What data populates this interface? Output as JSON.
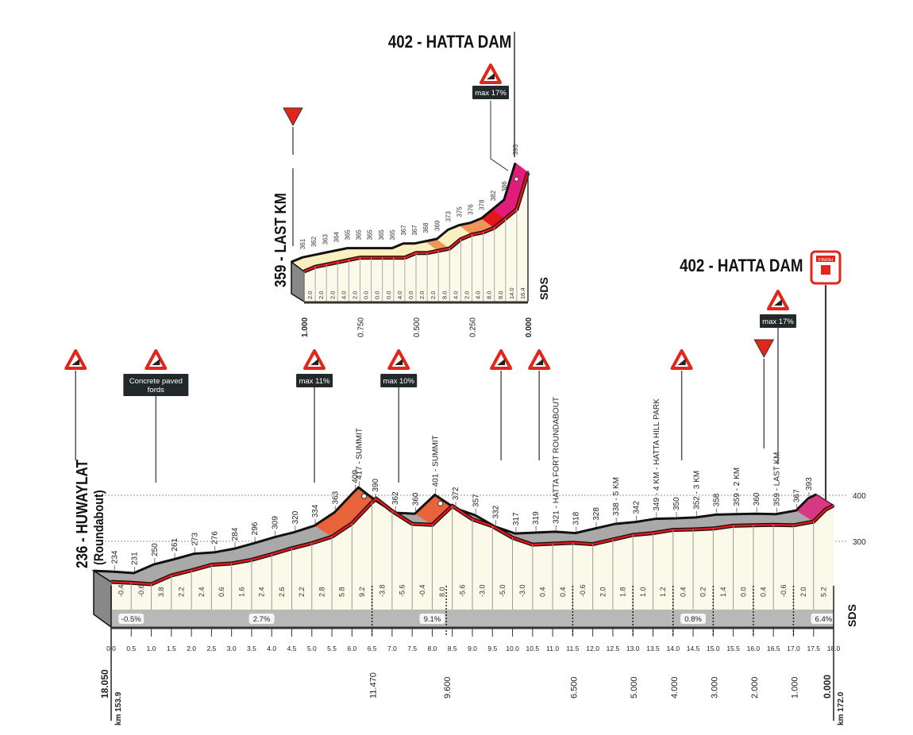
{
  "colors": {
    "profile_fill": "#fbf9ea",
    "band": "#b8b8b8",
    "road": "#e3161b",
    "climb": "#e8623a",
    "steep": "#e31c79",
    "sign_red": "#e3261b",
    "label_box": "#22292b",
    "last_km_light": "#fcefbf",
    "last_km_orange": "#f0955a"
  },
  "titles": {
    "inset_finish": "402 - HATTA DAM",
    "inset_start": "359 - LAST KM",
    "main_finish": "402 - HATTA DAM",
    "main_start": "236 - HUWAYLAT",
    "main_start_sub": "(Roundabout)",
    "finish_sign": "FINISH",
    "logo": "SDS"
  },
  "chart_data": [
    {
      "type": "area",
      "xlabel": "",
      "ylabel": "",
      "xlim": [
        0,
        18.0
      ],
      "ylim": [
        236,
        417
      ],
      "x_ticks": [
        "0.0",
        "0.5",
        "1.0",
        "1.5",
        "2.0",
        "2.5",
        "3.0",
        "3.5",
        "4.0",
        "4.5",
        "5.0",
        "5.5",
        "6.0",
        "6.5",
        "7.0",
        "7.5",
        "8.0",
        "8.5",
        "9.0",
        "9.5",
        "10.0",
        "10.5",
        "11.0",
        "11.5",
        "12.0",
        "12.5",
        "13.0",
        "13.5",
        "14.0",
        "14.5",
        "15.0",
        "15.5",
        "16.0",
        "16.5",
        "17.0",
        "17.5",
        "18.0"
      ],
      "y_ticks": [
        "400",
        "300"
      ],
      "profile": {
        "km": [
          0,
          0.5,
          1.0,
          1.5,
          2.0,
          2.5,
          3.0,
          3.5,
          4.0,
          4.5,
          5.0,
          5.5,
          6.0,
          6.5,
          6.6,
          7.0,
          7.5,
          8.0,
          8.5,
          9.0,
          9.5,
          10.0,
          10.5,
          11.0,
          11.5,
          12.0,
          12.5,
          13.0,
          13.5,
          14.0,
          14.5,
          15.0,
          15.5,
          16.0,
          16.5,
          17.0,
          17.5,
          17.8,
          18.0
        ],
        "elevation": [
          236,
          234,
          231,
          250,
          261,
          273,
          276,
          284,
          296,
          309,
          320,
          334,
          363,
          409,
          417,
          390,
          362,
          360,
          401,
          372,
          357,
          332,
          317,
          319,
          321,
          318,
          328,
          338,
          342,
          349,
          350,
          352,
          358,
          359,
          360,
          359,
          367,
          393,
          402
        ]
      },
      "point_labels": [
        {
          "km": 0.5,
          "text": "234"
        },
        {
          "km": 1.0,
          "text": "231"
        },
        {
          "km": 1.5,
          "text": "250"
        },
        {
          "km": 2.0,
          "text": "261"
        },
        {
          "km": 2.5,
          "text": "273"
        },
        {
          "km": 3.0,
          "text": "276"
        },
        {
          "km": 3.5,
          "text": "284"
        },
        {
          "km": 4.0,
          "text": "296"
        },
        {
          "km": 4.5,
          "text": "309"
        },
        {
          "km": 5.0,
          "text": "320"
        },
        {
          "km": 5.5,
          "text": "334"
        },
        {
          "km": 6.0,
          "text": "363"
        },
        {
          "km": 6.5,
          "text": "409"
        },
        {
          "km": 6.6,
          "text": "417 - SUMMIT"
        },
        {
          "km": 7.0,
          "text": "390"
        },
        {
          "km": 7.5,
          "text": "362"
        },
        {
          "km": 8.0,
          "text": "360"
        },
        {
          "km": 8.5,
          "text": "401 - SUMMIT"
        },
        {
          "km": 9.0,
          "text": "372"
        },
        {
          "km": 9.5,
          "text": "357"
        },
        {
          "km": 10.0,
          "text": "332"
        },
        {
          "km": 10.5,
          "text": "317"
        },
        {
          "km": 11.0,
          "text": "319"
        },
        {
          "km": 11.5,
          "text": "321 - HATTA FORT ROUNDABOUT"
        },
        {
          "km": 12.0,
          "text": "318"
        },
        {
          "km": 12.5,
          "text": "328"
        },
        {
          "km": 13.0,
          "text": "338 - 5 KM"
        },
        {
          "km": 13.5,
          "text": "342"
        },
        {
          "km": 14.0,
          "text": "349 - 4 KM - HATTA HILL PARK"
        },
        {
          "km": 14.5,
          "text": "350"
        },
        {
          "km": 15.0,
          "text": "352 - 3 KM"
        },
        {
          "km": 15.5,
          "text": "358"
        },
        {
          "km": 16.0,
          "text": "359 - 2 KM"
        },
        {
          "km": 16.5,
          "text": "360"
        },
        {
          "km": 17.0,
          "text": "359 - LAST KM"
        },
        {
          "km": 17.5,
          "text": "367"
        },
        {
          "km": 17.8,
          "text": "393"
        }
      ],
      "segment_gradients": [
        "-0.4",
        "-0.6",
        "3.8",
        "2.2",
        "2.4",
        "0.6",
        "1.6",
        "2.4",
        "2.6",
        "2.2",
        "2.8",
        "5.8",
        "9.2",
        "-3.8",
        "-5.6",
        "-0.4",
        "8.0",
        "-5.6",
        "-3.0",
        "-5.0",
        "-3.0",
        "0.4",
        "0.4",
        "-0.6",
        "2.0",
        "1.8",
        "1.0",
        "1.2",
        "0.4",
        "0.2",
        "1.4",
        "0.0",
        "0.4",
        "-0.6",
        "2.0",
        "5.2"
      ],
      "average_gradients": [
        {
          "km": 0.5,
          "text": "-0.5%"
        },
        {
          "km": 3.75,
          "text": "2.7%"
        },
        {
          "km": 8.0,
          "text": "9.1%"
        },
        {
          "km": 14.5,
          "text": "0.8%"
        },
        {
          "km": 17.75,
          "text": "6.4%"
        }
      ],
      "distance_to_go": [
        {
          "km": 0,
          "text": "18.050",
          "sub": "km 153.9"
        },
        {
          "km": 6.5,
          "text": "11.470"
        },
        {
          "km": 8.35,
          "text": "9.600"
        },
        {
          "km": 11.5,
          "text": "6.500"
        },
        {
          "km": 13.0,
          "text": "5.000"
        },
        {
          "km": 14.0,
          "text": "4.000"
        },
        {
          "km": 15.0,
          "text": "3.000"
        },
        {
          "km": 16.0,
          "text": "2.000"
        },
        {
          "km": 17.0,
          "text": "1.000"
        },
        {
          "km": 18.0,
          "text": "0.000",
          "sub": "km 172.0"
        }
      ],
      "markers": [
        {
          "km": -0.45,
          "type": "warning",
          "text": ""
        },
        {
          "km": 1.55,
          "type": "warning",
          "text": "Concrete paved fords"
        },
        {
          "km": 5.5,
          "type": "warning",
          "text": "max 11%"
        },
        {
          "km": 7.6,
          "type": "warning",
          "text": "max 10%"
        },
        {
          "km": 10.15,
          "type": "warning",
          "text": ""
        },
        {
          "km": 11.1,
          "type": "warning",
          "text": ""
        },
        {
          "km": 14.65,
          "type": "warning",
          "text": ""
        },
        {
          "km": 16.7,
          "type": "last-km",
          "text": ""
        },
        {
          "km": 17.05,
          "type": "warning",
          "text": "max 17%"
        },
        {
          "km": 17.8,
          "type": "finish",
          "text": ""
        }
      ]
    },
    {
      "type": "area",
      "xlabel": "",
      "ylabel": "",
      "xlim": [
        1.0,
        0.0
      ],
      "ylim": [
        359,
        402
      ],
      "x_ticks": [
        "1.000",
        "0.750",
        "0.500",
        "0.250",
        "0.000"
      ],
      "profile": {
        "km_to_go": [
          1.0,
          0.95,
          0.9,
          0.85,
          0.8,
          0.75,
          0.7,
          0.65,
          0.6,
          0.55,
          0.5,
          0.45,
          0.4,
          0.35,
          0.3,
          0.25,
          0.2,
          0.15,
          0.1,
          0.05,
          0.0
        ],
        "elevation": [
          359,
          361,
          362,
          363,
          364,
          365,
          365,
          365,
          365,
          365,
          367,
          367,
          368,
          369,
          373,
          375,
          376,
          378,
          382,
          386,
          402
        ]
      },
      "point_labels": [
        "361",
        "362",
        "363",
        "364",
        "365",
        "365",
        "365",
        "365",
        "365",
        "367",
        "367",
        "368",
        "369",
        "373",
        "375",
        "376",
        "378",
        "382",
        "386",
        "393"
      ],
      "segment_gradients": [
        "2.0",
        "2.0",
        "2.0",
        "4.0",
        "2.0",
        "0.0",
        "0.0",
        "0.0",
        "4.0",
        "0.0",
        "2.0",
        "2.0",
        "8.0",
        "4.0",
        "2.0",
        "4.0",
        "8.0",
        "8.0",
        "14.0",
        "16.4"
      ],
      "markers": [
        {
          "type": "last-km",
          "text": ""
        },
        {
          "type": "warning",
          "text": "max 17%"
        }
      ]
    }
  ]
}
